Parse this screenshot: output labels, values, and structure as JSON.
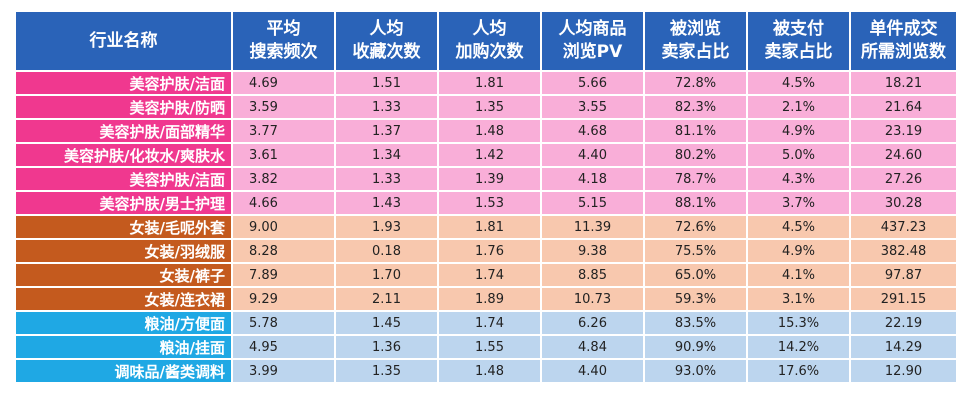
{
  "chart_data": {
    "type": "table",
    "columns": [
      [
        "行业名称"
      ],
      [
        "平均",
        "搜索频次"
      ],
      [
        "人均",
        "收藏次数"
      ],
      [
        "人均",
        "加购次数"
      ],
      [
        "人均商品",
        "浏览PV"
      ],
      [
        "被浏览",
        "卖家占比"
      ],
      [
        "被支付",
        "卖家占比"
      ],
      [
        "单件成交",
        "所需浏览数"
      ]
    ],
    "groups": [
      {
        "id": "beauty",
        "name_bg": "#f0388f",
        "cell_bg": "#f9aed8"
      },
      {
        "id": "apparel",
        "name_bg": "#c45a1e",
        "cell_bg": "#f8c8ae"
      },
      {
        "id": "food",
        "name_bg": "#1fa8e4",
        "cell_bg": "#bcd5ee"
      }
    ],
    "header_bg": "#2a63b8",
    "rows": [
      {
        "group": "beauty",
        "name": "美容护肤/洁面",
        "values": [
          "4.69",
          "1.51",
          "1.81",
          "5.66",
          "72.8%",
          "4.5%",
          "18.21"
        ]
      },
      {
        "group": "beauty",
        "name": "美容护肤/防晒",
        "values": [
          "3.59",
          "1.33",
          "1.35",
          "3.55",
          "82.3%",
          "2.1%",
          "21.64"
        ]
      },
      {
        "group": "beauty",
        "name": "美容护肤/面部精华",
        "values": [
          "3.77",
          "1.37",
          "1.48",
          "4.68",
          "81.1%",
          "4.9%",
          "23.19"
        ]
      },
      {
        "group": "beauty",
        "name": "美容护肤/化妆水/爽肤水",
        "values": [
          "3.61",
          "1.34",
          "1.42",
          "4.40",
          "80.2%",
          "5.0%",
          "24.60"
        ]
      },
      {
        "group": "beauty",
        "name": "美容护肤/洁面",
        "values": [
          "3.82",
          "1.33",
          "1.39",
          "4.18",
          "78.7%",
          "4.3%",
          "27.26"
        ]
      },
      {
        "group": "beauty",
        "name": "美容护肤/男士护理",
        "values": [
          "4.66",
          "1.43",
          "1.53",
          "5.15",
          "88.1%",
          "3.7%",
          "30.28"
        ]
      },
      {
        "group": "apparel",
        "name": "女装/毛呢外套",
        "values": [
          "9.00",
          "1.93",
          "1.81",
          "11.39",
          "72.6%",
          "4.5%",
          "437.23"
        ]
      },
      {
        "group": "apparel",
        "name": "女装/羽绒服",
        "values": [
          "8.28",
          "0.18",
          "1.76",
          "9.38",
          "75.5%",
          "4.9%",
          "382.48"
        ]
      },
      {
        "group": "apparel",
        "name": "女装/裤子",
        "values": [
          "7.89",
          "1.70",
          "1.74",
          "8.85",
          "65.0%",
          "4.1%",
          "97.87"
        ]
      },
      {
        "group": "apparel",
        "name": "女装/连衣裙",
        "values": [
          "9.29",
          "2.11",
          "1.89",
          "10.73",
          "59.3%",
          "3.1%",
          "291.15"
        ]
      },
      {
        "group": "food",
        "name": "粮油/方便面",
        "values": [
          "5.78",
          "1.45",
          "1.74",
          "6.26",
          "83.5%",
          "15.3%",
          "22.19"
        ]
      },
      {
        "group": "food",
        "name": "粮油/挂面",
        "values": [
          "4.95",
          "1.36",
          "1.55",
          "4.84",
          "90.9%",
          "14.2%",
          "14.29"
        ]
      },
      {
        "group": "food",
        "name": "调味品/酱类调料",
        "values": [
          "3.99",
          "1.35",
          "1.48",
          "4.40",
          "93.0%",
          "17.6%",
          "12.90"
        ]
      }
    ]
  }
}
